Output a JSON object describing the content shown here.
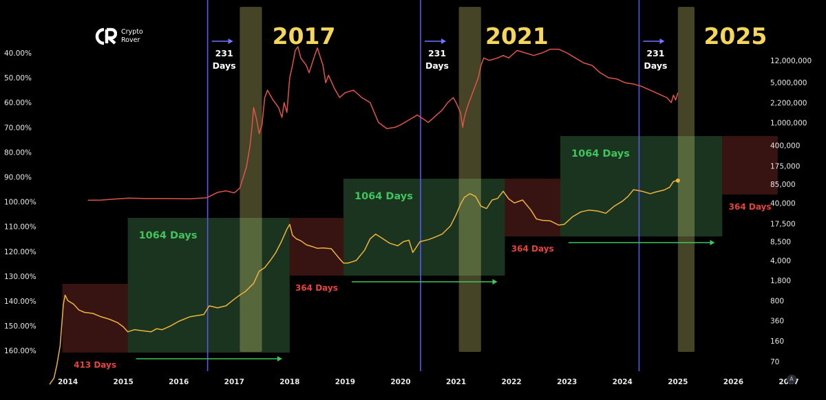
{
  "brand": {
    "line1": "Crypto",
    "line2": "Rover"
  },
  "footer_badge": "A",
  "colors": {
    "background": "#000000",
    "vline": "#5b56f0",
    "green_box": "#1e3a22",
    "red_box": "#3a1512",
    "highlight": "#d8d27a",
    "red_series": "#e2544a",
    "yellow_series": "#f0b43c",
    "year_label": "#f5d65a",
    "green_text": "#41c45d",
    "red_text": "#e8433a",
    "arrow_blue": "#6f77ff",
    "arrow_green": "#3ec85a"
  },
  "chart_data": {
    "type": "line",
    "x_range": [
      2013.67,
      2027.05
    ],
    "x_ticks": [
      "2014",
      "2015",
      "2016",
      "2017",
      "2018",
      "2019",
      "2020",
      "2021",
      "2022",
      "2023",
      "2024",
      "2025",
      "2026",
      "2027"
    ],
    "left_axis": {
      "scale": "linear",
      "reversed": true,
      "range": [
        35,
        163
      ],
      "ticks": [
        "40.00%",
        "50.00%",
        "60.00%",
        "70.00%",
        "80.00%",
        "90.00%",
        "100.00%",
        "110.00%",
        "120.00%",
        "130.00%",
        "140.00%",
        "150.00%",
        "160.00%"
      ]
    },
    "right_axis": {
      "scale": "log",
      "ticks": [
        "12,000,000",
        "5,000,000",
        "2,200,000",
        "1,000,000",
        "400,000",
        "175,000",
        "85,000",
        "40,000",
        "17,500",
        "8,500",
        "4,000",
        "1,800",
        "800",
        "360",
        "160",
        "70"
      ]
    },
    "halving_lines": [
      2016.52,
      2020.36,
      2024.3
    ],
    "cycle_years": [
      "2017",
      "2021",
      "2025"
    ],
    "delay_labels": [
      {
        "num": "231",
        "unit": "Days"
      },
      {
        "num": "231",
        "unit": "Days"
      },
      {
        "num": "231",
        "unit": "Days"
      }
    ],
    "highlight_columns": [
      [
        2017.1,
        2017.5
      ],
      [
        2021.05,
        2021.45
      ],
      [
        2025.0,
        2025.3
      ]
    ],
    "phases": [
      {
        "kind": "bear",
        "label": "413 Days",
        "x": [
          2013.9,
          2015.08
        ]
      },
      {
        "kind": "bull",
        "label": "1064 Days",
        "x": [
          2015.08,
          2018.0
        ]
      },
      {
        "kind": "bear",
        "label": "364 Days",
        "x": [
          2018.0,
          2018.97
        ]
      },
      {
        "kind": "bull",
        "label": "1064 Days",
        "x": [
          2018.97,
          2021.88
        ]
      },
      {
        "kind": "bear",
        "label": "364 Days",
        "x": [
          2021.88,
          2022.88
        ]
      },
      {
        "kind": "bull",
        "label": "1064 Days",
        "x": [
          2022.88,
          2025.8
        ]
      },
      {
        "kind": "bear",
        "label": "364 Days",
        "x": [
          2025.8,
          2026.8
        ]
      }
    ],
    "series": [
      {
        "name": "",
        "axis": "left",
        "points": [
          [
            2014.36,
            99.4
          ],
          [
            2014.6,
            99.3
          ],
          [
            2014.85,
            98.9
          ],
          [
            2015.1,
            98.5
          ],
          [
            2015.4,
            98.7
          ],
          [
            2015.8,
            98.7
          ],
          [
            2016.2,
            98.8
          ],
          [
            2016.5,
            98.4
          ],
          [
            2016.7,
            96.2
          ],
          [
            2016.85,
            95.6
          ],
          [
            2017.0,
            96.4
          ],
          [
            2017.1,
            94.5
          ],
          [
            2017.15,
            91.0
          ],
          [
            2017.22,
            86.0
          ],
          [
            2017.28,
            78.0
          ],
          [
            2017.32,
            70.0
          ],
          [
            2017.35,
            62.0
          ],
          [
            2017.4,
            66.5
          ],
          [
            2017.45,
            72.5
          ],
          [
            2017.5,
            69.0
          ],
          [
            2017.55,
            58.0
          ],
          [
            2017.6,
            55.0
          ],
          [
            2017.7,
            59.0
          ],
          [
            2017.8,
            62.0
          ],
          [
            2017.86,
            66.0
          ],
          [
            2017.9,
            60.0
          ],
          [
            2017.95,
            64.0
          ],
          [
            2018.0,
            50.0
          ],
          [
            2018.05,
            45.0
          ],
          [
            2018.1,
            39.0
          ],
          [
            2018.15,
            37.5
          ],
          [
            2018.2,
            42.0
          ],
          [
            2018.3,
            45.0
          ],
          [
            2018.35,
            48.0
          ],
          [
            2018.45,
            41.0
          ],
          [
            2018.5,
            38.0
          ],
          [
            2018.6,
            45.0
          ],
          [
            2018.65,
            52.0
          ],
          [
            2018.7,
            49.0
          ],
          [
            2018.8,
            54.0
          ],
          [
            2018.9,
            58.0
          ],
          [
            2019.0,
            56.0
          ],
          [
            2019.15,
            55.0
          ],
          [
            2019.3,
            58.0
          ],
          [
            2019.45,
            60.0
          ],
          [
            2019.6,
            68.0
          ],
          [
            2019.75,
            70.5
          ],
          [
            2019.9,
            70.0
          ],
          [
            2020.0,
            69.0
          ],
          [
            2020.15,
            67.0
          ],
          [
            2020.3,
            65.0
          ],
          [
            2020.5,
            68.0
          ],
          [
            2020.6,
            66.0
          ],
          [
            2020.75,
            63.0
          ],
          [
            2020.85,
            60.0
          ],
          [
            2020.95,
            58.0
          ],
          [
            2021.0,
            60.0
          ],
          [
            2021.08,
            64.0
          ],
          [
            2021.12,
            70.0
          ],
          [
            2021.15,
            66.0
          ],
          [
            2021.2,
            62.0
          ],
          [
            2021.3,
            56.0
          ],
          [
            2021.4,
            50.0
          ],
          [
            2021.45,
            45.0
          ],
          [
            2021.5,
            42.0
          ],
          [
            2021.6,
            43.0
          ],
          [
            2021.75,
            42.0
          ],
          [
            2021.85,
            41.0
          ],
          [
            2021.95,
            42.0
          ],
          [
            2022.1,
            39.0
          ],
          [
            2022.25,
            40.0
          ],
          [
            2022.4,
            41.0
          ],
          [
            2022.55,
            40.0
          ],
          [
            2022.7,
            38.5
          ],
          [
            2022.85,
            38.5
          ],
          [
            2023.0,
            40.0
          ],
          [
            2023.15,
            42.0
          ],
          [
            2023.3,
            44.0
          ],
          [
            2023.45,
            45.0
          ],
          [
            2023.6,
            48.0
          ],
          [
            2023.75,
            50.0
          ],
          [
            2023.9,
            50.5
          ],
          [
            2024.05,
            52.0
          ],
          [
            2024.2,
            52.5
          ],
          [
            2024.35,
            53.5
          ],
          [
            2024.5,
            55.0
          ],
          [
            2024.65,
            56.5
          ],
          [
            2024.8,
            58.0
          ],
          [
            2024.88,
            60.0
          ],
          [
            2024.92,
            57.0
          ],
          [
            2024.96,
            59.0
          ],
          [
            2025.0,
            56.0
          ]
        ]
      },
      {
        "name": "",
        "axis": "right",
        "points": [
          [
            2013.67,
            28
          ],
          [
            2013.75,
            36
          ],
          [
            2013.8,
            60
          ],
          [
            2013.86,
            130
          ],
          [
            2013.92,
            700
          ],
          [
            2013.95,
            1000
          ],
          [
            2014.0,
            800
          ],
          [
            2014.1,
            700
          ],
          [
            2014.2,
            550
          ],
          [
            2014.3,
            500
          ],
          [
            2014.45,
            480
          ],
          [
            2014.6,
            420
          ],
          [
            2014.75,
            380
          ],
          [
            2014.9,
            330
          ],
          [
            2015.0,
            280
          ],
          [
            2015.08,
            230
          ],
          [
            2015.2,
            250
          ],
          [
            2015.35,
            240
          ],
          [
            2015.5,
            230
          ],
          [
            2015.6,
            260
          ],
          [
            2015.7,
            250
          ],
          [
            2015.85,
            290
          ],
          [
            2016.0,
            350
          ],
          [
            2016.2,
            420
          ],
          [
            2016.45,
            460
          ],
          [
            2016.55,
            650
          ],
          [
            2016.7,
            600
          ],
          [
            2016.85,
            650
          ],
          [
            2017.0,
            850
          ],
          [
            2017.1,
            1000
          ],
          [
            2017.2,
            1150
          ],
          [
            2017.35,
            1600
          ],
          [
            2017.45,
            2600
          ],
          [
            2017.55,
            3000
          ],
          [
            2017.65,
            4000
          ],
          [
            2017.75,
            5500
          ],
          [
            2017.85,
            8500
          ],
          [
            2017.95,
            14000
          ],
          [
            2018.0,
            17000
          ],
          [
            2018.05,
            11000
          ],
          [
            2018.12,
            9500
          ],
          [
            2018.2,
            8800
          ],
          [
            2018.3,
            7500
          ],
          [
            2018.4,
            7000
          ],
          [
            2018.5,
            6500
          ],
          [
            2018.6,
            6600
          ],
          [
            2018.75,
            6400
          ],
          [
            2018.88,
            4500
          ],
          [
            2018.97,
            3600
          ],
          [
            2019.05,
            3600
          ],
          [
            2019.2,
            4000
          ],
          [
            2019.35,
            6000
          ],
          [
            2019.45,
            9500
          ],
          [
            2019.55,
            11500
          ],
          [
            2019.65,
            10000
          ],
          [
            2019.8,
            8000
          ],
          [
            2019.95,
            7200
          ],
          [
            2020.05,
            8500
          ],
          [
            2020.15,
            9000
          ],
          [
            2020.22,
            5500
          ],
          [
            2020.35,
            8500
          ],
          [
            2020.5,
            9200
          ],
          [
            2020.6,
            10000
          ],
          [
            2020.75,
            11500
          ],
          [
            2020.9,
            16000
          ],
          [
            2021.0,
            25000
          ],
          [
            2021.08,
            38000
          ],
          [
            2021.15,
            50000
          ],
          [
            2021.25,
            58000
          ],
          [
            2021.35,
            52000
          ],
          [
            2021.45,
            35000
          ],
          [
            2021.55,
            32000
          ],
          [
            2021.65,
            45000
          ],
          [
            2021.75,
            48000
          ],
          [
            2021.85,
            64000
          ],
          [
            2021.95,
            47000
          ],
          [
            2022.05,
            40000
          ],
          [
            2022.2,
            45000
          ],
          [
            2022.35,
            30000
          ],
          [
            2022.45,
            21000
          ],
          [
            2022.55,
            20000
          ],
          [
            2022.7,
            19500
          ],
          [
            2022.85,
            16500
          ],
          [
            2022.95,
            17000
          ],
          [
            2023.1,
            23000
          ],
          [
            2023.25,
            28000
          ],
          [
            2023.4,
            30000
          ],
          [
            2023.55,
            29000
          ],
          [
            2023.7,
            26500
          ],
          [
            2023.85,
            35000
          ],
          [
            2024.0,
            43000
          ],
          [
            2024.1,
            52000
          ],
          [
            2024.2,
            68000
          ],
          [
            2024.35,
            64000
          ],
          [
            2024.5,
            58000
          ],
          [
            2024.6,
            62000
          ],
          [
            2024.75,
            67000
          ],
          [
            2024.85,
            75000
          ],
          [
            2024.92,
            95000
          ],
          [
            2025.0,
            98000
          ]
        ]
      }
    ]
  }
}
